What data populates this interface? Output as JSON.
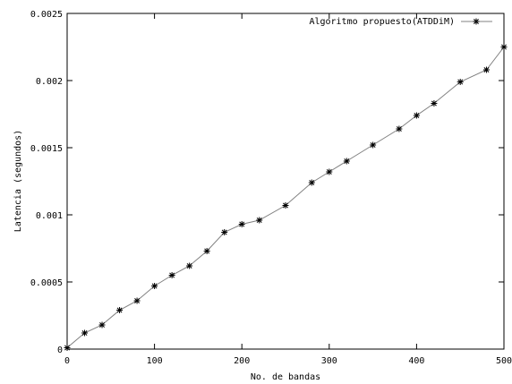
{
  "chart_data": {
    "type": "line",
    "title": "",
    "xlabel": "No. de bandas",
    "ylabel": "Latencia (segundos)",
    "xlim": [
      0,
      500
    ],
    "ylim": [
      0,
      0.0025
    ],
    "x_ticks": [
      0,
      100,
      200,
      300,
      400,
      500
    ],
    "x_tick_labels": [
      "0",
      "100",
      "200",
      "300",
      "400",
      "500"
    ],
    "y_ticks": [
      0,
      0.0005,
      0.001,
      0.0015,
      0.002,
      0.0025
    ],
    "y_tick_labels": [
      "0",
      "0.0005",
      "0.001",
      "0.0015",
      "0.002",
      "0.0025"
    ],
    "grid": false,
    "legend_position": "top-right",
    "marker": "asterisk",
    "line_color": "#808080",
    "marker_color": "#000000",
    "series": [
      {
        "name": "Algoritmo propuesto(ATDDiM)",
        "x": [
          0,
          20,
          40,
          60,
          80,
          100,
          120,
          140,
          160,
          180,
          200,
          220,
          250,
          280,
          300,
          320,
          350,
          380,
          400,
          420,
          450,
          480,
          500
        ],
        "values": [
          1e-05,
          0.00012,
          0.00018,
          0.00029,
          0.00036,
          0.00047,
          0.00055,
          0.00062,
          0.00073,
          0.00087,
          0.00093,
          0.00096,
          0.00107,
          0.00124,
          0.00132,
          0.0014,
          0.00152,
          0.00164,
          0.00174,
          0.00183,
          0.00199,
          0.00208,
          0.00225
        ]
      }
    ]
  }
}
